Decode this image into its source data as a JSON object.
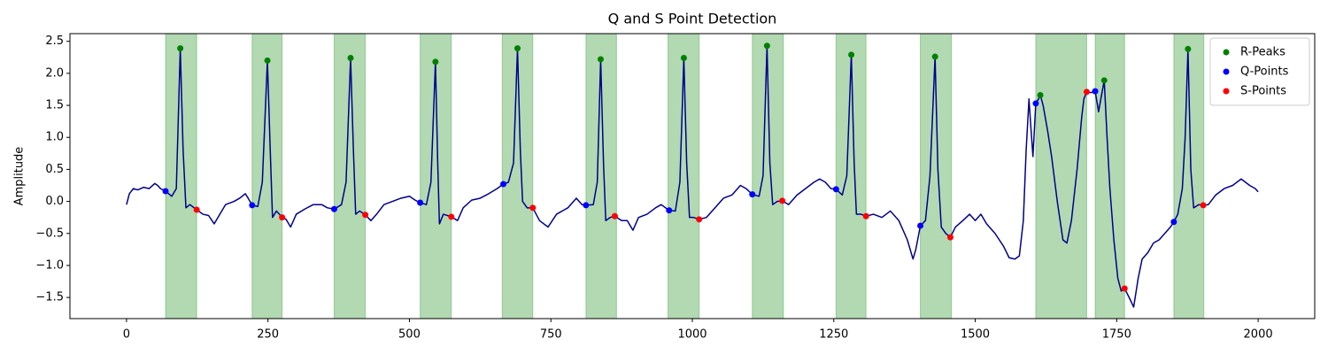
{
  "chart_data": {
    "type": "line",
    "title": "Q and S Point Detection",
    "ylabel": "Amplitude",
    "xlim": [
      -100,
      2100
    ],
    "ylim": [
      -1.83,
      2.62
    ],
    "xticks": [
      0,
      250,
      500,
      750,
      1000,
      1250,
      1500,
      1750,
      2000
    ],
    "yticks": [
      {
        "value": -1.5,
        "label": "−1.5"
      },
      {
        "value": -1.0,
        "label": "−1.0"
      },
      {
        "value": -0.5,
        "label": "−0.5"
      },
      {
        "value": 0,
        "label": "0.0"
      },
      0.5,
      {
        "value": 1.0,
        "label": "1.0"
      },
      1.5,
      {
        "value": 2.0,
        "label": "2.0"
      },
      2.5
    ],
    "legend": "upper right",
    "regions": {
      "color": "#008000",
      "opacity": 0.3,
      "spans": [
        [
          69,
          124
        ],
        [
          222,
          275
        ],
        [
          367,
          422
        ],
        [
          519,
          574
        ],
        [
          664,
          718
        ],
        [
          812,
          866
        ],
        [
          957,
          1012
        ],
        [
          1106,
          1161
        ],
        [
          1254,
          1307
        ],
        [
          1403,
          1458
        ],
        [
          1607,
          1697
        ],
        [
          1712,
          1764
        ],
        [
          1851,
          1904
        ]
      ]
    },
    "series": [
      {
        "style": "line",
        "color": "#00008b",
        "x": [
          0,
          5,
          12,
          20,
          30,
          40,
          50,
          55,
          60,
          69,
          80,
          88,
          95,
          100,
          105,
          112,
          124,
          135,
          145,
          155,
          165,
          175,
          190,
          200,
          210,
          215,
          222,
          232,
          240,
          249,
          254,
          258,
          265,
          275,
          282,
          290,
          300,
          315,
          330,
          345,
          355,
          367,
          380,
          388,
          396,
          401,
          405,
          412,
          422,
          432,
          442,
          455,
          470,
          485,
          500,
          510,
          519,
          530,
          538,
          546,
          550,
          553,
          560,
          574,
          585,
          595,
          610,
          625,
          640,
          655,
          666,
          675,
          684,
          691,
          696,
          700,
          708,
          718,
          730,
          745,
          760,
          780,
          795,
          805,
          812,
          825,
          832,
          838,
          843,
          847,
          855,
          863,
          875,
          885,
          895,
          905,
          920,
          935,
          945,
          959,
          970,
          978,
          985,
          990,
          995,
          1002,
          1012,
          1025,
          1040,
          1055,
          1070,
          1085,
          1095,
          1106,
          1118,
          1125,
          1132,
          1137,
          1142,
          1150,
          1159,
          1170,
          1185,
          1200,
          1215,
          1225,
          1235,
          1245,
          1254,
          1265,
          1273,
          1281,
          1286,
          1290,
          1298,
          1307,
          1320,
          1335,
          1350,
          1365,
          1380,
          1390,
          1395,
          1403,
          1412,
          1420,
          1429,
          1434,
          1440,
          1448,
          1456,
          1465,
          1478,
          1490,
          1500,
          1510,
          1520,
          1535,
          1550,
          1560,
          1570,
          1578,
          1585,
          1590,
          1595,
          1598,
          1602,
          1607,
          1612,
          1615,
          1620,
          1628,
          1635,
          1645,
          1655,
          1662,
          1670,
          1680,
          1688,
          1692,
          1697,
          1705,
          1712,
          1718,
          1722,
          1728,
          1733,
          1738,
          1745,
          1752,
          1758,
          1764,
          1772,
          1780,
          1788,
          1795,
          1805,
          1815,
          1825,
          1835,
          1845,
          1851,
          1858,
          1866,
          1871,
          1876,
          1881,
          1886,
          1895,
          1903,
          1912,
          1925,
          1940,
          1955,
          1970,
          1985,
          1995,
          2000
        ],
        "values": [
          -0.05,
          0.12,
          0.2,
          0.18,
          0.22,
          0.2,
          0.28,
          0.25,
          0.2,
          0.16,
          0.08,
          0.2,
          2.39,
          0.8,
          -0.1,
          -0.05,
          -0.13,
          -0.2,
          -0.22,
          -0.35,
          -0.2,
          -0.05,
          0.0,
          0.05,
          0.12,
          0.05,
          -0.06,
          -0.08,
          0.3,
          2.2,
          0.8,
          -0.25,
          -0.15,
          -0.25,
          -0.28,
          -0.4,
          -0.2,
          -0.12,
          -0.05,
          -0.05,
          -0.1,
          -0.12,
          -0.05,
          0.3,
          2.24,
          0.8,
          -0.2,
          -0.15,
          -0.21,
          -0.3,
          -0.2,
          -0.05,
          0.0,
          0.05,
          0.08,
          0.02,
          -0.02,
          -0.05,
          0.3,
          2.18,
          0.6,
          -0.35,
          -0.2,
          -0.24,
          -0.3,
          -0.1,
          0.02,
          0.05,
          0.12,
          0.2,
          0.27,
          0.3,
          0.6,
          2.39,
          0.8,
          0.0,
          -0.1,
          -0.1,
          -0.3,
          -0.4,
          -0.2,
          -0.1,
          0.05,
          -0.05,
          -0.06,
          -0.05,
          0.3,
          2.22,
          0.6,
          -0.3,
          -0.25,
          -0.23,
          -0.3,
          -0.3,
          -0.45,
          -0.25,
          -0.2,
          -0.1,
          -0.05,
          -0.14,
          -0.15,
          0.3,
          2.24,
          0.6,
          -0.25,
          -0.25,
          -0.28,
          -0.25,
          -0.1,
          0.05,
          0.1,
          0.25,
          0.2,
          0.11,
          0.08,
          0.4,
          2.43,
          0.6,
          -0.05,
          0.0,
          0.01,
          -0.05,
          0.1,
          0.2,
          0.3,
          0.35,
          0.3,
          0.2,
          0.19,
          0.1,
          0.4,
          2.29,
          0.6,
          -0.2,
          -0.2,
          -0.23,
          -0.2,
          -0.25,
          -0.15,
          -0.3,
          -0.6,
          -0.9,
          -0.75,
          -0.38,
          -0.3,
          0.4,
          2.26,
          0.5,
          -0.4,
          -0.5,
          -0.56,
          -0.4,
          -0.3,
          -0.2,
          -0.3,
          -0.2,
          -0.35,
          -0.5,
          -0.7,
          -0.88,
          -0.9,
          -0.85,
          -0.3,
          0.8,
          1.6,
          1.2,
          0.7,
          1.53,
          1.6,
          1.66,
          1.5,
          1.1,
          0.7,
          0.0,
          -0.6,
          -0.65,
          -0.3,
          0.5,
          1.3,
          1.6,
          1.71,
          1.7,
          1.72,
          1.4,
          1.6,
          1.89,
          1.0,
          0.2,
          -0.6,
          -1.2,
          -1.4,
          -1.36,
          -1.5,
          -1.65,
          -1.2,
          -0.9,
          -0.8,
          -0.65,
          -0.6,
          -0.5,
          -0.4,
          -0.32,
          -0.2,
          0.2,
          1.0,
          2.38,
          0.5,
          -0.1,
          -0.05,
          -0.06,
          -0.05,
          0.1,
          0.2,
          0.25,
          0.35,
          0.25,
          0.2,
          0.15
        ]
      },
      {
        "style": "marker",
        "name": "R-Peaks",
        "color": "#008000",
        "x": [
          95,
          249,
          396,
          546,
          691,
          838,
          985,
          1132,
          1281,
          1429,
          1615,
          1728,
          1876
        ],
        "values": [
          2.39,
          2.2,
          2.24,
          2.18,
          2.39,
          2.22,
          2.24,
          2.43,
          2.29,
          2.26,
          1.66,
          1.89,
          2.38
        ]
      },
      {
        "style": "marker",
        "name": "Q-Points",
        "color": "#0000ff",
        "x": [
          69,
          222,
          367,
          519,
          666,
          812,
          959,
          1106,
          1254,
          1403,
          1607,
          1712,
          1851
        ],
        "values": [
          0.16,
          -0.06,
          -0.12,
          -0.02,
          0.27,
          -0.06,
          -0.14,
          0.11,
          0.19,
          -0.38,
          1.53,
          1.72,
          -0.32
        ]
      },
      {
        "style": "marker",
        "name": "S-Points",
        "color": "#ff0000",
        "x": [
          124,
          275,
          422,
          574,
          718,
          863,
          1012,
          1159,
          1307,
          1456,
          1697,
          1764,
          1903
        ],
        "values": [
          -0.13,
          -0.25,
          -0.21,
          -0.24,
          -0.1,
          -0.23,
          -0.28,
          0.01,
          -0.23,
          -0.56,
          1.71,
          -1.36,
          -0.06
        ]
      }
    ]
  }
}
